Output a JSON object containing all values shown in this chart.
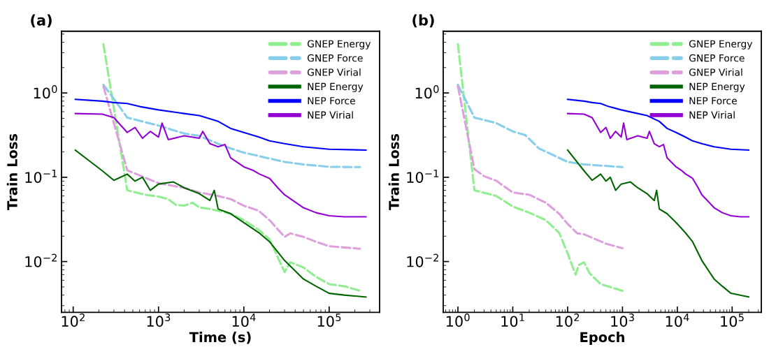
{
  "chart_data": [
    {
      "type": "line",
      "title": "(a)",
      "xlabel": "Time (s)",
      "ylabel": "Train Loss",
      "log": "xy",
      "legend": "top right",
      "grid": false,
      "xlim": [
        73,
        390000
      ],
      "ylim": [
        0.0025,
        5.4
      ],
      "xticks": [
        {
          "value": 100,
          "label": "10$^{2}$"
        },
        {
          "value": 1000,
          "label": "10$^{3}$"
        },
        {
          "value": 10000,
          "label": "10$^{4}$"
        },
        {
          "value": 100000,
          "label": "10$^{5}$"
        }
      ],
      "yticks": [
        {
          "value": 0.01,
          "label": "10$^{−2}$"
        },
        {
          "value": 0.1,
          "label": "10$^{−1}$"
        },
        {
          "value": 1,
          "label": "10$^{0}$"
        }
      ],
      "series": [
        {
          "name": "GNEP Energy",
          "color": "#90ee90",
          "line_style": "dashed",
          "x": [
            226,
            430,
            700,
            1000,
            1300,
            1600,
            2000,
            2500,
            3000,
            4000,
            7000,
            10000,
            15000,
            20000,
            30000,
            35000,
            50000,
            70000,
            100000,
            150000,
            230000
          ],
          "values": [
            3.8,
            0.07,
            0.062,
            0.059,
            0.055,
            0.047,
            0.046,
            0.05,
            0.044,
            0.042,
            0.037,
            0.031,
            0.0237,
            0.0184,
            0.0075,
            0.0098,
            0.0085,
            0.0066,
            0.0054,
            0.0051,
            0.0045
          ]
        },
        {
          "name": "GNEP Force",
          "color": "#87ceeb",
          "line_style": "dashed",
          "x": [
            226,
            300,
            430,
            1000,
            2000,
            3000,
            5000,
            7000,
            10000,
            20000,
            30000,
            50000,
            100000,
            230000
          ],
          "values": [
            1.25,
            0.85,
            0.51,
            0.41,
            0.33,
            0.31,
            0.25,
            0.22,
            0.196,
            0.167,
            0.152,
            0.142,
            0.133,
            0.132
          ]
        },
        {
          "name": "GNEP Virial",
          "color": "#dda0dd",
          "line_style": "dashed",
          "x": [
            226,
            430,
            1000,
            2000,
            3000,
            5000,
            7000,
            10000,
            15000,
            20000,
            30000,
            35000,
            50000,
            70000,
            100000,
            230000
          ],
          "values": [
            1.2,
            0.121,
            0.085,
            0.075,
            0.066,
            0.06,
            0.055,
            0.046,
            0.04,
            0.031,
            0.0196,
            0.0216,
            0.0196,
            0.0172,
            0.0152,
            0.0142
          ]
        },
        {
          "name": "NEP Energy",
          "color": "#006400",
          "line_style": "solid",
          "x": [
            106,
            220,
            300,
            430,
            530,
            650,
            800,
            1000,
            1500,
            2000,
            3000,
            4000,
            4500,
            5000,
            7000,
            10000,
            15000,
            20000,
            30000,
            50000,
            70000,
            100000,
            150000,
            270000
          ],
          "values": [
            0.21,
            0.119,
            0.092,
            0.109,
            0.09,
            0.1,
            0.07,
            0.083,
            0.088,
            0.075,
            0.064,
            0.053,
            0.07,
            0.042,
            0.037,
            0.029,
            0.022,
            0.0172,
            0.0103,
            0.0062,
            0.0051,
            0.0042,
            0.004,
            0.0038
          ]
        },
        {
          "name": "NEP Force",
          "color": "#0000ff",
          "line_style": "solid",
          "x": [
            106,
            220,
            300,
            430,
            600,
            1000,
            2000,
            3000,
            5000,
            7000,
            10000,
            15000,
            20000,
            30000,
            50000,
            100000,
            270000
          ],
          "values": [
            0.84,
            0.8,
            0.77,
            0.75,
            0.69,
            0.63,
            0.57,
            0.54,
            0.46,
            0.38,
            0.34,
            0.3,
            0.27,
            0.25,
            0.23,
            0.215,
            0.21
          ]
        },
        {
          "name": "NEP Virial",
          "color": "#9400d3",
          "line_style": "solid",
          "x": [
            106,
            220,
            300,
            430,
            530,
            650,
            800,
            1000,
            1100,
            1300,
            2000,
            3000,
            3300,
            4000,
            5000,
            6000,
            7000,
            10000,
            13000,
            15000,
            20000,
            25000,
            30000,
            50000,
            70000,
            100000,
            150000,
            270000
          ],
          "values": [
            0.57,
            0.56,
            0.51,
            0.34,
            0.39,
            0.29,
            0.35,
            0.3,
            0.44,
            0.28,
            0.31,
            0.29,
            0.35,
            0.25,
            0.23,
            0.245,
            0.17,
            0.133,
            0.12,
            0.11,
            0.097,
            0.075,
            0.062,
            0.0435,
            0.038,
            0.035,
            0.034,
            0.034
          ]
        }
      ]
    },
    {
      "type": "line",
      "title": "(b)",
      "xlabel": "Epoch",
      "ylabel": "Train Loss",
      "log": "xy",
      "legend": "top right",
      "grid": false,
      "xlim": [
        0.54,
        340000
      ],
      "ylim": [
        0.0025,
        5.4
      ],
      "xticks": [
        {
          "value": 1,
          "label": "10$^{0}$"
        },
        {
          "value": 10,
          "label": "10$^{1}$"
        },
        {
          "value": 100,
          "label": "10$^{2}$"
        },
        {
          "value": 1000,
          "label": "10$^{3}$"
        },
        {
          "value": 10000,
          "label": "10$^{4}$"
        },
        {
          "value": 100000,
          "label": "10$^{5}$"
        }
      ],
      "yticks": [
        {
          "value": 0.01,
          "label": "10$^{−2}$"
        },
        {
          "value": 0.1,
          "label": "10$^{−1}$"
        },
        {
          "value": 1,
          "label": "10$^{0}$"
        }
      ],
      "series": [
        {
          "name": "GNEP Energy",
          "color": "#90ee90",
          "line_style": "dashed",
          "x": [
            1,
            2,
            5,
            10,
            20,
            40,
            70,
            100,
            140,
            160,
            200,
            250,
            400,
            1000
          ],
          "values": [
            3.8,
            0.07,
            0.06,
            0.045,
            0.038,
            0.031,
            0.022,
            0.0125,
            0.007,
            0.0091,
            0.0098,
            0.0073,
            0.0054,
            0.0045
          ]
        },
        {
          "name": "GNEP Force",
          "color": "#87ceeb",
          "line_style": "dashed",
          "x": [
            1,
            2,
            5,
            10,
            17,
            30,
            60,
            100,
            200,
            1000
          ],
          "values": [
            1.25,
            0.51,
            0.44,
            0.35,
            0.316,
            0.22,
            0.178,
            0.152,
            0.142,
            0.132
          ]
        },
        {
          "name": "GNEP Virial",
          "color": "#dda0dd",
          "line_style": "dashed",
          "x": [
            1,
            2,
            3,
            5,
            10,
            20,
            40,
            70,
            100,
            150,
            200,
            500,
            1000
          ],
          "values": [
            1.2,
            0.125,
            0.103,
            0.091,
            0.066,
            0.062,
            0.05,
            0.037,
            0.028,
            0.0216,
            0.021,
            0.0163,
            0.0144
          ]
        },
        {
          "name": "NEP Energy",
          "color": "#006400",
          "line_style": "solid",
          "x": [
            100,
            200,
            280,
            400,
            500,
            600,
            750,
            950,
            1400,
            1900,
            2800,
            3800,
            4200,
            4700,
            6500,
            9500,
            14000,
            19000,
            28000,
            47000,
            66000,
            95000,
            140000,
            200000
          ],
          "values": [
            0.21,
            0.119,
            0.092,
            0.109,
            0.09,
            0.1,
            0.07,
            0.083,
            0.088,
            0.075,
            0.064,
            0.053,
            0.07,
            0.042,
            0.037,
            0.029,
            0.022,
            0.0172,
            0.0103,
            0.0062,
            0.0051,
            0.0042,
            0.004,
            0.0038
          ]
        },
        {
          "name": "NEP Force",
          "color": "#0000ff",
          "line_style": "solid",
          "x": [
            100,
            200,
            280,
            400,
            560,
            950,
            1900,
            2800,
            4700,
            6500,
            9500,
            14000,
            19000,
            28000,
            47000,
            95000,
            200000
          ],
          "values": [
            0.84,
            0.8,
            0.77,
            0.75,
            0.69,
            0.63,
            0.57,
            0.54,
            0.46,
            0.38,
            0.34,
            0.3,
            0.27,
            0.25,
            0.23,
            0.215,
            0.21
          ]
        },
        {
          "name": "NEP Virial",
          "color": "#9400d3",
          "line_style": "solid",
          "x": [
            100,
            200,
            280,
            400,
            500,
            600,
            750,
            950,
            1050,
            1200,
            1900,
            2800,
            3100,
            3800,
            4700,
            5600,
            6500,
            9500,
            12000,
            14000,
            19000,
            24000,
            28000,
            47000,
            66000,
            95000,
            140000,
            200000
          ],
          "values": [
            0.57,
            0.56,
            0.51,
            0.34,
            0.39,
            0.29,
            0.35,
            0.3,
            0.44,
            0.28,
            0.31,
            0.29,
            0.35,
            0.25,
            0.23,
            0.245,
            0.17,
            0.133,
            0.12,
            0.11,
            0.097,
            0.075,
            0.062,
            0.0435,
            0.038,
            0.035,
            0.034,
            0.034
          ]
        }
      ]
    }
  ]
}
